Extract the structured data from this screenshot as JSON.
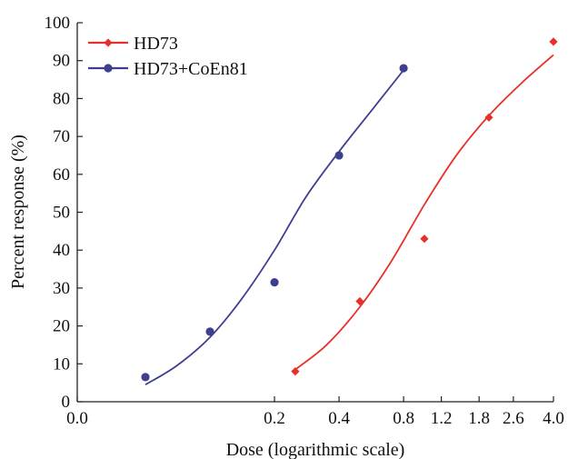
{
  "chart_data": {
    "type": "scatter",
    "xlabel": "Dose (logarithmic scale)",
    "ylabel": "Percent response (%)",
    "xscale": "log",
    "xlim": [
      0.05,
      4.0
    ],
    "ylim": [
      0,
      100
    ],
    "grid": false,
    "legend_position": "top-left",
    "x_ticks": [
      {
        "label": "0.0"
      },
      {
        "label": "0.2",
        "value": 0.2
      },
      {
        "label": "0.4",
        "value": 0.4
      },
      {
        "label": "0.8",
        "value": 0.8
      },
      {
        "label": "1.2",
        "value": 1.2
      },
      {
        "label": "1.8",
        "value": 1.8
      },
      {
        "label": "2.6",
        "value": 2.6
      },
      {
        "label": "4.0",
        "value": 4.0
      }
    ],
    "y_ticks": [
      {
        "label": "0",
        "value": 0
      },
      {
        "label": "10",
        "value": 10
      },
      {
        "label": "20",
        "value": 20
      },
      {
        "label": "30",
        "value": 30
      },
      {
        "label": "40",
        "value": 40
      },
      {
        "label": "50",
        "value": 50
      },
      {
        "label": "60",
        "value": 60
      },
      {
        "label": "70",
        "value": 70
      },
      {
        "label": "80",
        "value": 80
      },
      {
        "label": "90",
        "value": 90
      },
      {
        "label": "100",
        "value": 100
      }
    ],
    "series": [
      {
        "name": "HD73",
        "color": "#e8302a",
        "marker": "diamond",
        "points": [
          {
            "x": 0.25,
            "y": 8
          },
          {
            "x": 0.5,
            "y": 26.5
          },
          {
            "x": 1.0,
            "y": 43
          },
          {
            "x": 2.0,
            "y": 75
          },
          {
            "x": 4.0,
            "y": 95
          }
        ],
        "fit": [
          {
            "x": 0.25,
            "y": 8.5
          },
          {
            "x": 0.35,
            "y": 15
          },
          {
            "x": 0.5,
            "y": 25
          },
          {
            "x": 0.7,
            "y": 37
          },
          {
            "x": 1.0,
            "y": 52
          },
          {
            "x": 1.41,
            "y": 65
          },
          {
            "x": 2.0,
            "y": 75.5
          },
          {
            "x": 2.83,
            "y": 84
          },
          {
            "x": 4.0,
            "y": 91.5
          }
        ]
      },
      {
        "name": "HD73+CoEn81",
        "color": "#3f3f8f",
        "marker": "circle",
        "points": [
          {
            "x": 0.05,
            "y": 6.5
          },
          {
            "x": 0.1,
            "y": 18.5
          },
          {
            "x": 0.2,
            "y": 31.5
          },
          {
            "x": 0.4,
            "y": 65
          },
          {
            "x": 0.8,
            "y": 88
          }
        ],
        "fit": [
          {
            "x": 0.05,
            "y": 4.5
          },
          {
            "x": 0.07,
            "y": 9.5
          },
          {
            "x": 0.1,
            "y": 17
          },
          {
            "x": 0.14,
            "y": 27
          },
          {
            "x": 0.2,
            "y": 40
          },
          {
            "x": 0.28,
            "y": 54
          },
          {
            "x": 0.4,
            "y": 66
          },
          {
            "x": 0.57,
            "y": 77
          },
          {
            "x": 0.8,
            "y": 87.5
          }
        ]
      }
    ]
  }
}
